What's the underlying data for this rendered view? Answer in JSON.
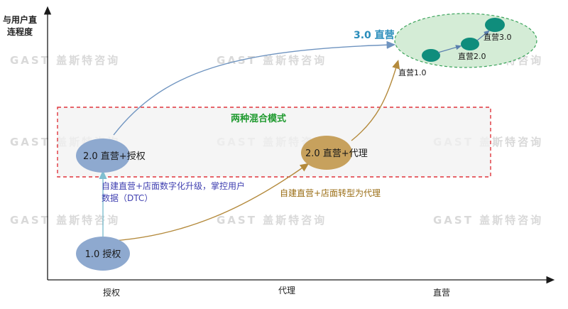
{
  "watermark": "GAST 盖斯特咨询",
  "axes": {
    "y_label_line1": "与用户直",
    "y_label_line2": "连程度",
    "x_ticks": [
      "授权",
      "代理",
      "直营"
    ]
  },
  "hybrid_box": {
    "title": "两种混合模式"
  },
  "nodes": {
    "license_1": "1.0 授权",
    "direct_license_2": "2.0 直营+授权",
    "direct_agent_2": "2.0  直营+代理",
    "direct_3": "3.0  直营"
  },
  "sub_nodes": [
    "直营1.0",
    "直营2.0",
    "直营3.0"
  ],
  "annotations": {
    "blue_path_line1": "自建直营+店面数字化升级，掌控用户",
    "blue_path_line2": "数据（DTC）",
    "gold_path": "自建直营+店面转型为代理"
  },
  "colors": {
    "blue_node": "#8ea9cf",
    "gold_node": "#c7a15d",
    "green_cloud": "#d4ecd6",
    "teal_dot": "#0f8d7c",
    "box_border": "#e0353c",
    "hybrid_title": "#1f9a2f",
    "blue_text": "#3f3fb0",
    "gold_text": "#9a6d14",
    "blue_arrow": "#6f94c0",
    "gold_arrow": "#b48a3c"
  }
}
